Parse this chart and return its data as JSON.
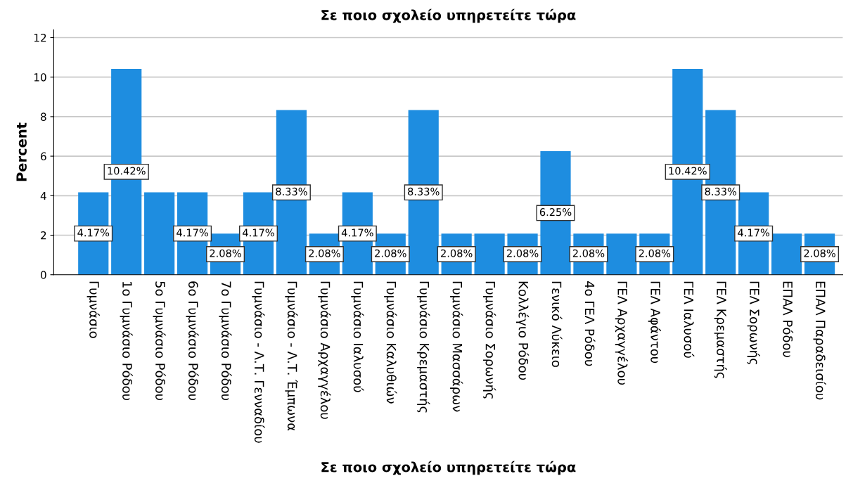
{
  "chart_data": {
    "type": "bar",
    "title": "Σε ποιο σχολείο υπηρετείτε τώρα",
    "xlabel": "Σε ποιο σχολείο υπηρετείτε τώρα",
    "ylabel": "Percent",
    "categories": [
      "Γυμνάσιο",
      "1ο Γυμνάσιο Ρόδου",
      "5ο Γυμνάσιο Ρόδου",
      "6ο Γυμνάσιο Ρόδου",
      "7ο Γυμνάσιο Ρόδου",
      "Γυμνάσιο - Λ.Τ. Γενναδίου",
      "Γυμνάσιο - Λ.Τ. Έμπωνα",
      "Γυμνάσιο Αρχαγγέλου",
      "Γυμνάσιο Ιαλυσού",
      "Γυμνάσιο Καλυθιών",
      "Γυμνάσιο Κρεμαστής",
      "Γυμνάσιο Μασσάρων",
      "Γυμνάσιο Σορωνής",
      "Κολλέγιο Ρόδου",
      "Γενικό Λύκειο",
      "4ο ΓΕΛ Ρόδου",
      "ΓΕΛ Αρχαγγέλου",
      "ΓΕΛ Αφάντου",
      "ΓΕΛ Ιαλυσού",
      "ΓΕΛ Κρεμαστής",
      "ΓΕΛ Σορωνής",
      "ΕΠΑΛ Ρόδου",
      "ΕΠΑΛ Παραδεισίου"
    ],
    "values": [
      4.17,
      10.42,
      4.17,
      4.17,
      2.08,
      4.17,
      8.33,
      2.08,
      4.17,
      2.08,
      8.33,
      2.08,
      2.08,
      2.08,
      6.25,
      2.08,
      2.08,
      2.08,
      10.42,
      8.33,
      4.17,
      2.08,
      2.08
    ],
    "value_labels": [
      "4.17%",
      "10.42%",
      null,
      "4.17%",
      "2.08%",
      "4.17%",
      "8.33%",
      "2.08%",
      "4.17%",
      "2.08%",
      "8.33%",
      "2.08%",
      null,
      "2.08%",
      "6.25%",
      "2.08%",
      null,
      "2.08%",
      "10.42%",
      "8.33%",
      "4.17%",
      null,
      "2.08%"
    ],
    "color": "#1e8de0",
    "ylim": [
      0,
      12.4
    ],
    "yticks": [
      0,
      2,
      4,
      6,
      8,
      10,
      12
    ],
    "grid": "y"
  }
}
